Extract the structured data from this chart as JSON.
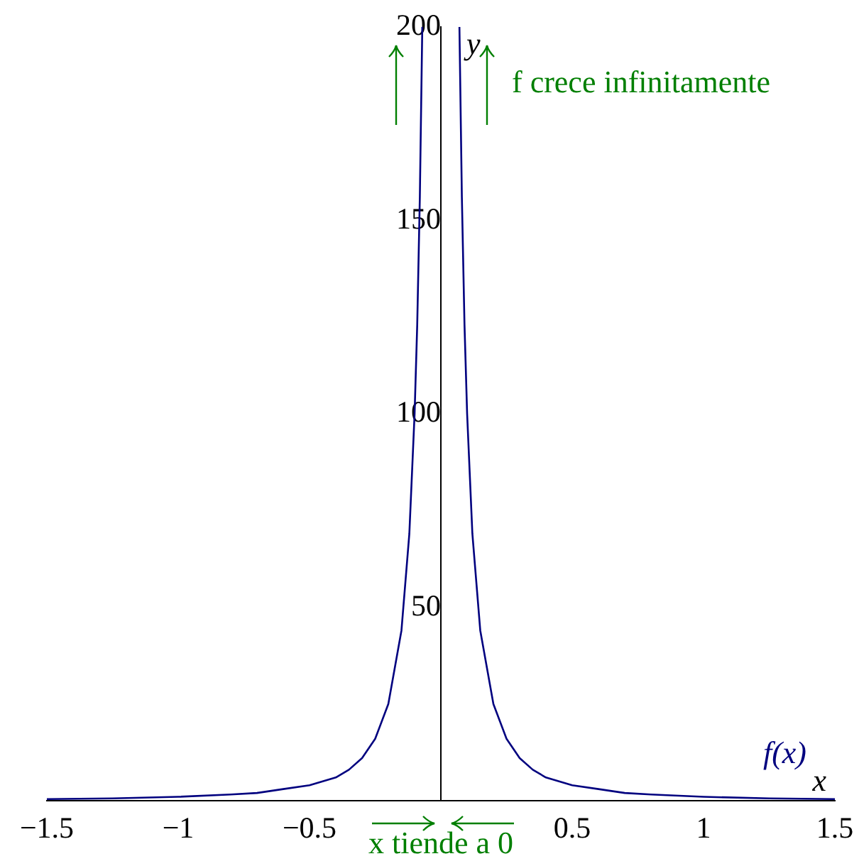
{
  "chart_data": {
    "type": "line",
    "xlabel": "x",
    "ylabel": "y",
    "x": [
      -1.5,
      -1.25,
      -1,
      -0.8,
      -0.7,
      -0.6,
      -0.5,
      -0.4,
      -0.35,
      -0.3,
      -0.25,
      -0.2,
      -0.15,
      -0.12,
      -0.1,
      -0.09,
      -0.08,
      -0.0707,
      0,
      0.0707,
      0.08,
      0.09,
      0.1,
      0.12,
      0.15,
      0.2,
      0.25,
      0.3,
      0.35,
      0.4,
      0.5,
      0.6,
      0.7,
      0.8,
      1,
      1.25,
      1.5
    ],
    "series": [
      {
        "name": "f(x)",
        "color": "#00007f",
        "values": [
          0.4,
          0.6,
          1,
          1.6,
          2,
          3,
          4,
          6,
          8,
          11,
          16,
          25,
          44,
          69,
          100,
          123,
          156,
          200,
          null,
          200,
          156,
          123,
          100,
          69,
          44,
          25,
          16,
          11,
          8,
          6,
          4,
          3,
          2,
          1.6,
          1,
          0.6,
          0.4
        ]
      }
    ],
    "xlim": [
      -1.5,
      1.5
    ],
    "xticks": [
      {
        "value": -1.5,
        "label": "−1.5"
      },
      {
        "value": -1,
        "label": "−1"
      },
      {
        "value": -0.5,
        "label": "−0.5"
      },
      0.5,
      1,
      1.5
    ],
    "ylim": [
      0,
      200
    ],
    "yticks": [
      50,
      100,
      150,
      200
    ],
    "grid": false,
    "legend": false,
    "marker": "none",
    "line_style": "solid",
    "annotations": [
      "f crece infinitamente",
      "x tiende a 0"
    ]
  }
}
